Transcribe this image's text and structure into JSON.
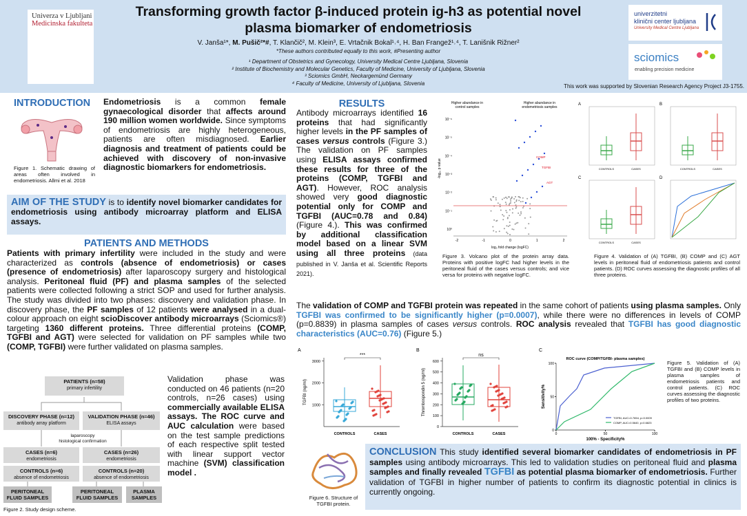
{
  "header": {
    "title": [
      "Transforming growth factor β-induced protein ig-h3 as potential novel",
      "plasma biomarker of endometriosis"
    ],
    "authors": {
      "runs": [
        {
          "text": "V. Janša¹*, "
        },
        {
          "text": "M. Pušič²*#",
          "bold": true
        },
        {
          "text": ", T. Klančič², M. Klein³, E. Vrtačnik Bokal¹˒⁴, H. Ban Frangež¹˒⁴, T. Lanišnik Rižner²"
        }
      ]
    },
    "note": "*These authors contributed equally to this work, #Presenting author",
    "affiliations": [
      "¹ Department of Obstetrics and Gynecology, University Medical Centre Ljubljana, Slovenia",
      "² Institute of Biochemistry and Molecular Genetics, Faculty of Medicine, University of Ljubljana, Slovenia",
      "³ Sciomics GmbH, Neckargemünd Germany",
      "⁴ Faculty of Medicine, University of Ljubljana, Slovenia"
    ],
    "support": "This work was supported by Slovenian Research Agency Project J3-1755.",
    "logo_left": [
      "Univerza v Ljubljani",
      "Medicinska fakulteta"
    ],
    "logo_ukc": [
      "univerzitetni",
      "klinični center ljubljana",
      "University Medical Centre Ljubljana"
    ],
    "logo_sciomics": [
      "sciomics",
      "enabling precision medicine"
    ]
  },
  "introduction": {
    "heading": "INTRODUCTION",
    "runs": [
      {
        "text": "Endometriosis",
        "bold": true
      },
      {
        "text": " is a common "
      },
      {
        "text": "female gynaecological disorder",
        "bold": true
      },
      {
        "text": " that "
      },
      {
        "text": "affects around 190 million women worldwide.",
        "bold": true
      },
      {
        "text": " Since symptoms of endometriosis are highly heterogeneous, patients are often misdiagnosed. "
      },
      {
        "text": "Earlier diagnosis and treatment of patients could be achieved with discovery of non-invasive diagnostic biomarkers for endometriosis.",
        "bold": true
      }
    ],
    "caption": "Figure 1. Schematic drawing of areas often involved in endometriosis. Allmi et al. 2018"
  },
  "aim": {
    "runs": [
      {
        "text": "AIM OF THE STUDY",
        "bold": true,
        "color": "#2f6eb5",
        "large": true
      },
      {
        "text": " is to "
      },
      {
        "text": "identify novel biomarker candidates for endometriosis using antibody microarray platform and ELISA assays.",
        "bold": true
      }
    ]
  },
  "methods": {
    "heading": "PATIENTS AND METHODS",
    "runs": [
      {
        "text": "Patients with primary infertility",
        "bold": true
      },
      {
        "text": " were included in the study and were characterized as "
      },
      {
        "text": "controls (absence of endometriosis) or cases (presence of endometriosis)",
        "bold": true
      },
      {
        "text": " after laparoscopy surgery and histological analysis. "
      },
      {
        "text": "Peritoneal fluid (PF) and plasma samples",
        "bold": true
      },
      {
        "text": " of the selected patients were collected following a strict SOP and used for further analysis. The study was divided into two phases: discovery and validation phase. In discovery phase, the "
      },
      {
        "text": "PF samples",
        "bold": true
      },
      {
        "text": " of 12 patients "
      },
      {
        "text": "were analysed",
        "bold": true
      },
      {
        "text": " in a dual-colour approach on eight "
      },
      {
        "text": "scioDiscover antibody microarrays",
        "bold": true
      },
      {
        "text": " (Sciomics®) targeting "
      },
      {
        "text": "1360 different proteins.",
        "bold": true
      },
      {
        "text": " Three differential proteins "
      },
      {
        "text": "(COMP, TGFBI and AGT)",
        "bold": true
      },
      {
        "text": " were selected for validation on PF samples while two "
      },
      {
        "text": "(COMP, TGFBI)",
        "bold": true
      },
      {
        "text": " were further validated on plasma samples."
      }
    ],
    "validation_runs": [
      {
        "text": "Validation phase was conducted on 46 patients (n=20 controls, n=26 cases) using "
      },
      {
        "text": "commercially available ELISA assays. The ROC curve and AUC calculation",
        "bold": true
      },
      {
        "text": " were based on the test sample predictions of each respective split tested with linear support vector machine "
      },
      {
        "text": "(SVM) classification model .",
        "bold": true
      }
    ],
    "flow": {
      "patients": [
        "PATIENTS (n=58)",
        "primary infertility"
      ],
      "discovery": [
        "DISCOVERY PHASE (n=12)",
        "antibody array platform"
      ],
      "validation": [
        "VALIDATION PHASE (n=46)",
        "ELISA assays"
      ],
      "link": [
        "laparoscopy",
        "histological confirmation"
      ],
      "cases_d": [
        "CASES (n=6)",
        "endometriosis"
      ],
      "controls_d": [
        "CONTROLS (n=6)",
        "absence of endometriosis"
      ],
      "cases_v": [
        "CASES (n=26)",
        "endometriosis"
      ],
      "controls_v": [
        "CONTROLS (n=20)",
        "absence of endometriosis"
      ],
      "samples": [
        "PERITONEAL FLUID SAMPLES",
        "PERITONEAL FLUID SAMPLES",
        "PLASMA SAMPLES"
      ]
    },
    "caption": "Figure 2. Study design scheme."
  },
  "results": {
    "heading": "RESULTS",
    "runs": [
      {
        "text": "Antibody microarrays identified "
      },
      {
        "text": "16 proteins",
        "bold": true
      },
      {
        "text": " that had significantly higher levels "
      },
      {
        "text": "in the PF samples of cases ",
        "bold": true
      },
      {
        "text": "versus",
        "bold": true,
        "italic": true
      },
      {
        "text": " controls",
        "bold": true
      },
      {
        "text": " (Figure 3.) The validation on PF samples using "
      },
      {
        "text": "ELISA assays confirmed these results for three of the proteins (COMP, TGFBI and AGT)",
        "bold": true
      },
      {
        "text": ". However, ROC analysis showed very "
      },
      {
        "text": "good diagnostic potential only for COMP and TGFBI (AUC=0.78 and 0.84)",
        "bold": true
      },
      {
        "text": " (Figure 4.). "
      },
      {
        "text": "This was confirmed by additional classification model based on a linear SVM using all three proteins",
        "bold": true
      },
      {
        "text": " (data published in V. Janša et al. Scientific Reports 2021).",
        "small": true
      }
    ],
    "fig3": {
      "left_label": [
        "Higher abundance in",
        "control samples"
      ],
      "right_label": [
        "Higher abundance in",
        "endometriosis samples"
      ],
      "xlabel": "log₂ fold change (logFC)",
      "ylabel": "-log₁₀ p value",
      "xticks": [
        -2,
        -1,
        0,
        1,
        2
      ],
      "yticks": [
        "10⁻⁶",
        "10⁻⁵",
        "10⁻⁴",
        "10⁻³",
        "10⁻²",
        "10⁻¹",
        "10⁰"
      ],
      "proteins": [
        "COMP",
        "TGFBI",
        "AGT"
      ]
    },
    "fig3_caption": "Figure 3. Volcano plot of the protein array data. Proteins with positive logFC had higher levels in the peritoneal fluid of the cases versus controls; and vice versa for proteins with negative logFC.",
    "fig4": {
      "panels": [
        "A",
        "B",
        "C",
        "D"
      ],
      "categories": [
        "CONTROLS",
        "CASES"
      ]
    },
    "fig4_caption": "Figure 4. Validation of (A) TGFBI, (B) COMP and (C) AGT levels in peritoneal fluid of endometriosis patients and control patients. (D) ROC curves assessing the diagnostic profiles of all three proteins.",
    "runs2": [
      {
        "text": "The "
      },
      {
        "text": "validation of COMP and TGFBI protein was repeated",
        "bold": true
      },
      {
        "text": " in the same cohort of patients "
      },
      {
        "text": "using plasma samples.",
        "bold": true
      },
      {
        "text": " Only "
      },
      {
        "text": "TGFBI was confirmed to be significantly higher (p=0.0007)",
        "bold": true,
        "color": "#3a86c8"
      },
      {
        "text": ", while there were no differences in levels of COMP (p=0.8839) in plasma samples of cases "
      },
      {
        "text": "versus",
        "italic": true
      },
      {
        "text": " controls. "
      },
      {
        "text": "ROC analysis",
        "bold": true
      },
      {
        "text": " revealed that "
      },
      {
        "text": "TGFBI has good diagnostic characteristics (AUC=0.76)",
        "bold": true,
        "color": "#3a86c8"
      },
      {
        "text": " (Figure 5.)"
      }
    ],
    "fig5": {
      "a": {
        "panel": "A",
        "ylabel": "TGFBI (ng/ml)",
        "yticks": [
          1000,
          2000,
          3000
        ],
        "categories": [
          "CONTROLS",
          "CASES"
        ],
        "sig": "***"
      },
      "b": {
        "panel": "B",
        "ylabel": "Thrombospondin 5 (ng/ml)",
        "yticks": [
          0,
          100,
          200,
          300,
          400,
          500,
          600
        ],
        "categories": [
          "CONTROLS",
          "CASES"
        ],
        "sig": "ns"
      },
      "c": {
        "panel": "C",
        "title": "ROC curve (COMP/TGFBI- plasma samples)",
        "ylabel": "Sensitivity%",
        "xlabel": "100% - Specificity%",
        "yticks": [
          0,
          50,
          100
        ],
        "xticks": [
          0,
          50,
          100
        ],
        "legend": [
          "TGFBI, AUC=0.7654, p=0.0009",
          "COMP, AUC=0.5640, p=0.6823"
        ]
      }
    },
    "fig5_caption": "Figure 5. Validation of (A) TGFBI and (B) COMP levels in plasma samples of endometriosis patients and control patients. (C) ROC curves assessing the diagnostic profiles of two proteins.",
    "fig6_caption": "Figure 6. Structure of TGFBI protein."
  },
  "conclusion": {
    "runs": [
      {
        "text": "CONCLUSION",
        "bold": true,
        "color": "#2f6eb5",
        "large": true
      },
      {
        "text": " This study "
      },
      {
        "text": "identified several biomarker candidates of endometriosis in PF samples",
        "bold": true
      },
      {
        "text": " using antibody microarrays. This led to validation studies on peritoneal fluid and "
      },
      {
        "text": "plasma samples and finally revealed ",
        "bold": true
      },
      {
        "text": "TGFBI",
        "bold": true,
        "color": "#3a86c8",
        "large": true
      },
      {
        "text": " as potential plasma biomarker of endometriosis.",
        "bold": true
      },
      {
        "text": " Further validation of TGFBI in higher number of patients to confirm its diagnostic potential in clinics is currently ongoing."
      }
    ]
  }
}
